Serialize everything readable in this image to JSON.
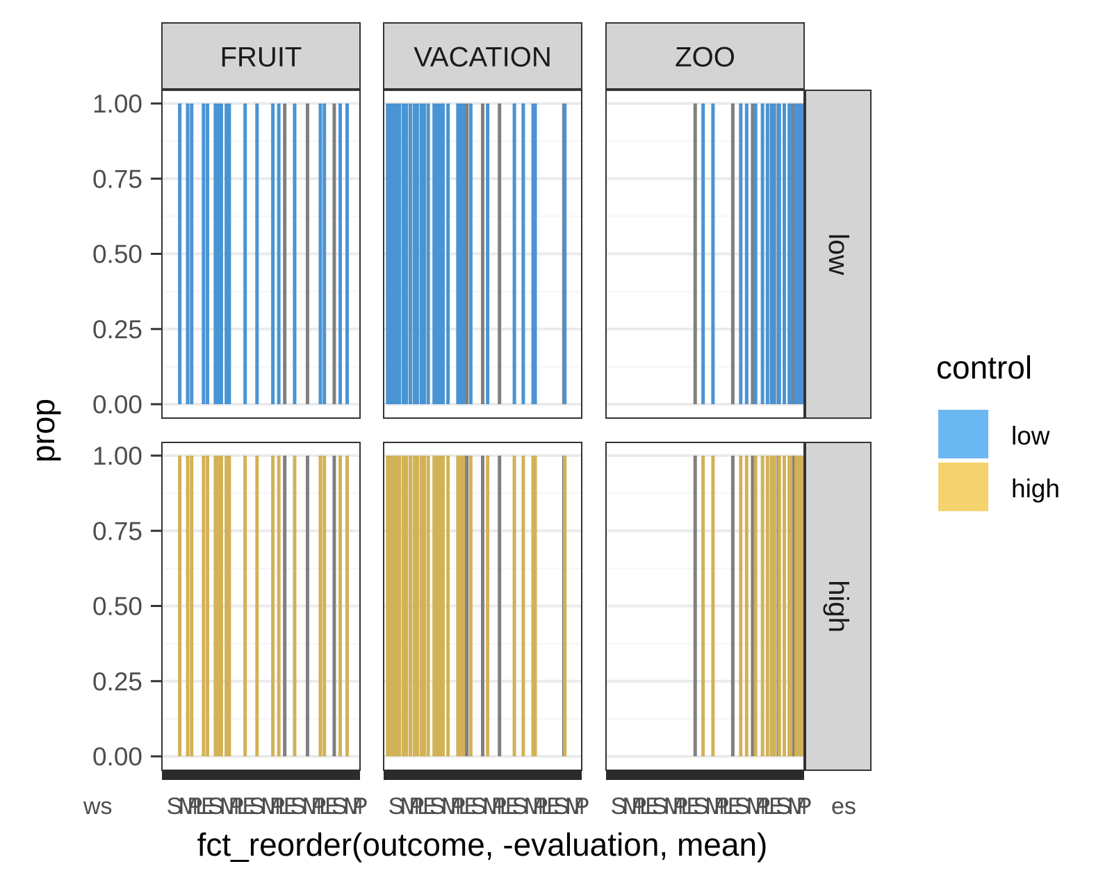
{
  "chart_data": {
    "type": "bar",
    "xlabel": "fct_reorder(outcome, -evaluation, mean)",
    "ylabel": "prop",
    "ylim": [
      0,
      1
    ],
    "yticks": [
      "0.00",
      "0.25",
      "0.50",
      "0.75",
      "1.00"
    ],
    "facet_cols": [
      "FRUIT",
      "VACATION",
      "ZOO"
    ],
    "facet_rows": [
      "low",
      "high"
    ],
    "legend": {
      "title": "control",
      "position": "right",
      "entries": [
        {
          "name": "low",
          "color": "#6bb7f2"
        },
        {
          "name": "high",
          "color": "#f4d36e"
        }
      ]
    },
    "colors": {
      "low_bar": "#4a94d3",
      "high_bar": "#d2b257",
      "other_bar": "#808080",
      "strip_fill": "#d4d4d4",
      "grid_major": "#ebebeb",
      "grid_minor": "#f4f4f4"
    },
    "x_tick_labels_overlap": "ws",
    "x_tick_labels_tail": "es",
    "bars": {
      "FRUIT": [
        {
          "x": 0.09,
          "fill": true
        },
        {
          "x": 0.13,
          "fill": true
        },
        {
          "x": 0.15,
          "fill": true
        },
        {
          "x": 0.21,
          "fill": true
        },
        {
          "x": 0.23,
          "fill": true
        },
        {
          "x": 0.27,
          "fill": true
        },
        {
          "x": 0.285,
          "fill": true
        },
        {
          "x": 0.3,
          "fill": true
        },
        {
          "x": 0.325,
          "fill": true
        },
        {
          "x": 0.34,
          "fill": true
        },
        {
          "x": 0.42,
          "fill": true
        },
        {
          "x": 0.48,
          "fill": true
        },
        {
          "x": 0.56,
          "fill": true
        },
        {
          "x": 0.59,
          "fill": true
        },
        {
          "x": 0.62,
          "fill": false
        },
        {
          "x": 0.67,
          "fill": true
        },
        {
          "x": 0.735,
          "fill": false
        },
        {
          "x": 0.8,
          "fill": true
        },
        {
          "x": 0.82,
          "fill": true
        },
        {
          "x": 0.87,
          "fill": false
        },
        {
          "x": 0.9,
          "fill": true
        },
        {
          "x": 0.935,
          "fill": true
        }
      ],
      "VACATION": [
        {
          "x": 0.02,
          "fill": true
        },
        {
          "x": 0.035,
          "fill": true
        },
        {
          "x": 0.05,
          "fill": true
        },
        {
          "x": 0.065,
          "fill": true
        },
        {
          "x": 0.08,
          "fill": true
        },
        {
          "x": 0.1,
          "fill": true
        },
        {
          "x": 0.115,
          "fill": true
        },
        {
          "x": 0.135,
          "fill": true
        },
        {
          "x": 0.155,
          "fill": true
        },
        {
          "x": 0.17,
          "fill": true
        },
        {
          "x": 0.19,
          "fill": true
        },
        {
          "x": 0.205,
          "fill": true
        },
        {
          "x": 0.225,
          "fill": true
        },
        {
          "x": 0.255,
          "fill": true
        },
        {
          "x": 0.27,
          "fill": true
        },
        {
          "x": 0.285,
          "fill": true
        },
        {
          "x": 0.3,
          "fill": true
        },
        {
          "x": 0.325,
          "fill": true
        },
        {
          "x": 0.375,
          "fill": true
        },
        {
          "x": 0.39,
          "fill": true
        },
        {
          "x": 0.405,
          "fill": true
        },
        {
          "x": 0.42,
          "fill": false
        },
        {
          "x": 0.44,
          "fill": true
        },
        {
          "x": 0.5,
          "fill": false
        },
        {
          "x": 0.525,
          "fill": true
        },
        {
          "x": 0.585,
          "fill": false
        },
        {
          "x": 0.66,
          "fill": true
        },
        {
          "x": 0.705,
          "fill": true
        },
        {
          "x": 0.755,
          "fill": false
        },
        {
          "x": 0.755,
          "fill": true
        },
        {
          "x": 0.76,
          "fill": true
        },
        {
          "x": 0.76,
          "fill": true
        },
        {
          "x": 0.765,
          "fill": true
        },
        {
          "x": 0.91,
          "fill": false
        },
        {
          "x": 0.915,
          "fill": true
        }
      ],
      "ZOO": [
        {
          "x": 0.45,
          "fill": false
        },
        {
          "x": 0.49,
          "fill": true
        },
        {
          "x": 0.54,
          "fill": true
        },
        {
          "x": 0.64,
          "fill": false
        },
        {
          "x": 0.68,
          "fill": true
        },
        {
          "x": 0.71,
          "fill": true
        },
        {
          "x": 0.74,
          "fill": false
        },
        {
          "x": 0.755,
          "fill": true
        },
        {
          "x": 0.79,
          "fill": true
        },
        {
          "x": 0.815,
          "fill": true
        },
        {
          "x": 0.835,
          "fill": true
        },
        {
          "x": 0.85,
          "fill": true
        },
        {
          "x": 0.87,
          "fill": false
        },
        {
          "x": 0.875,
          "fill": true
        },
        {
          "x": 0.9,
          "fill": true
        },
        {
          "x": 0.925,
          "fill": true
        },
        {
          "x": 0.935,
          "fill": true
        },
        {
          "x": 0.95,
          "fill": false
        },
        {
          "x": 0.96,
          "fill": true
        },
        {
          "x": 0.975,
          "fill": true
        },
        {
          "x": 0.99,
          "fill": true
        }
      ]
    },
    "value_all_bars": 1.0
  }
}
